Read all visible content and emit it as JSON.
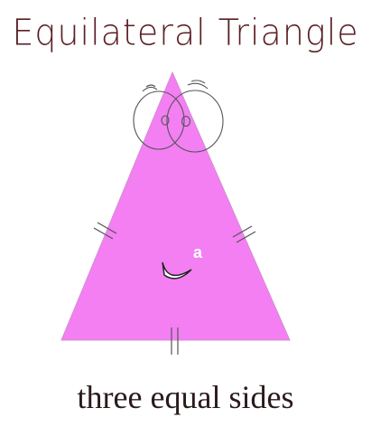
{
  "title": "Equilateral Triangle",
  "caption": "three equal sides",
  "mark": "a",
  "colors": {
    "triangle_fill": "#f37ff3",
    "outline": "#444444",
    "title_text": "#5a1f24",
    "caption_text": "#2a1a1c"
  }
}
